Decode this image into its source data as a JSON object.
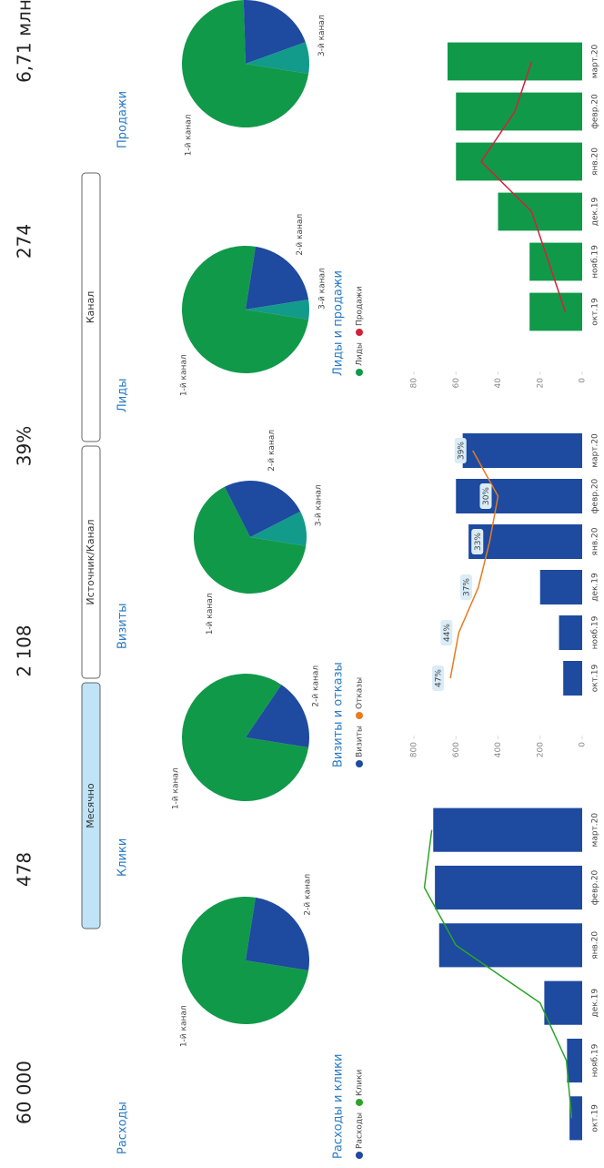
{
  "kpis": [
    "60 000",
    "478",
    "2 108",
    "39%",
    "274",
    "6,71 млн"
  ],
  "buttons": [
    "Месячно",
    "Источник/Канал",
    "Канал"
  ],
  "chart_data": [
    {
      "type": "pie",
      "title": "Расходы",
      "categories": [
        "1-й канал",
        "2-й канал"
      ],
      "values": [
        75,
        25
      ],
      "colors": [
        "#11994a",
        "#1e4aa0"
      ]
    },
    {
      "type": "pie",
      "title": "Клики",
      "categories": [
        "1-й канал",
        "2-й канал"
      ],
      "values": [
        82,
        18
      ],
      "colors": [
        "#11994a",
        "#1e4aa0"
      ]
    },
    {
      "type": "pie",
      "title": "Визиты",
      "categories": [
        "1-й канал",
        "2-й канал",
        "3-й канал"
      ],
      "values": [
        65,
        25,
        10
      ],
      "colors": [
        "#11994a",
        "#1e4aa0",
        "#129a8a"
      ]
    },
    {
      "type": "pie",
      "title": "Лиды",
      "categories": [
        "1-й канал",
        "2-й канал",
        "3-й канал"
      ],
      "values": [
        75,
        20,
        5
      ],
      "colors": [
        "#11994a",
        "#1e4aa0",
        "#129a8a"
      ]
    },
    {
      "type": "pie",
      "title": "Продажи",
      "categories": [
        "1-й канал",
        "2-й канал",
        "3-й канал"
      ],
      "values": [
        72,
        20,
        8
      ],
      "colors": [
        "#11994a",
        "#1e4aa0",
        "#129a8a"
      ]
    },
    {
      "type": "bar",
      "title": "Расходы и клики",
      "categories": [
        "окт.19",
        "нояб.19",
        "дек.19",
        "янв.20",
        "февр.20",
        "март.20"
      ],
      "series": [
        {
          "name": "Расходы",
          "color": "#1e4aa0",
          "values": [
            1500,
            1800,
            4500,
            17000,
            17500,
            17700
          ]
        },
        {
          "name": "Клики",
          "color": "#2aa52a",
          "axis": "y2",
          "values": [
            10,
            15,
            40,
            120,
            150,
            143
          ]
        }
      ],
      "ylim": [
        0,
        20000
      ],
      "y2lim": [
        0,
        160
      ]
    },
    {
      "type": "bar",
      "title": "Визиты и отказы",
      "categories": [
        "окт.19",
        "нояб.19",
        "дек.19",
        "янв.20",
        "февр.20",
        "март.20"
      ],
      "series": [
        {
          "name": "Визиты",
          "color": "#1e4aa0",
          "values": [
            90,
            110,
            200,
            540,
            600,
            568
          ]
        },
        {
          "name": "Отказы",
          "color": "#e87b1e",
          "axis": "y2",
          "values": [
            47,
            44,
            37,
            33,
            30,
            39
          ],
          "value_labels": [
            "47%",
            "44%",
            "37%",
            "33%",
            "30%",
            "39%"
          ]
        }
      ],
      "ylim": [
        0,
        800
      ],
      "yticks": [
        0,
        200,
        400,
        600,
        800
      ],
      "y2lim": [
        0,
        60
      ]
    },
    {
      "type": "bar",
      "title": "Лиды и продажи",
      "categories": [
        "окт.19",
        "нояб.19",
        "дек.19",
        "янв.20",
        "февр.20",
        "март.20"
      ],
      "series": [
        {
          "name": "Лиды",
          "color": "#11994a",
          "values": [
            25,
            25,
            40,
            60,
            60,
            64
          ]
        },
        {
          "name": "Продажи",
          "color": "#d4203a",
          "axis": "y2",
          "values": [
            1,
            2,
            3,
            6,
            4,
            3
          ]
        }
      ],
      "ylim": [
        0,
        80
      ],
      "yticks": [
        0,
        20,
        40,
        60,
        80
      ],
      "y2lim": [
        0,
        10
      ]
    }
  ]
}
